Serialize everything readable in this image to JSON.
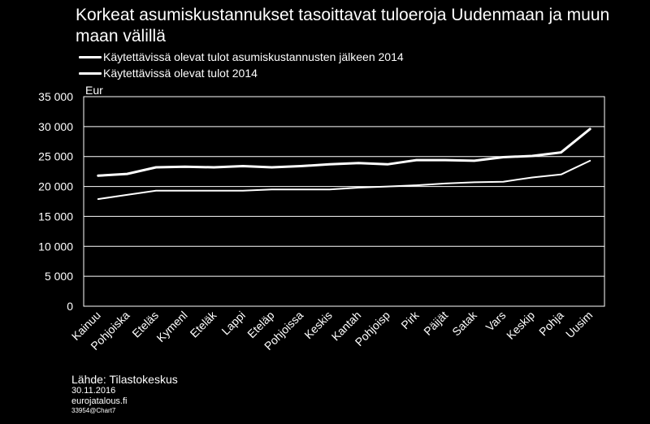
{
  "chart_data": {
    "type": "line",
    "title": "Korkeat asumiskustannukset tasoittavat tuloeroja Uudenmaan ja muun maan välillä",
    "ylabel": "Eur",
    "xlabel": "",
    "ylim": [
      0,
      35000
    ],
    "yticks": [
      0,
      5000,
      10000,
      15000,
      20000,
      25000,
      30000,
      35000
    ],
    "ytick_labels": [
      "0",
      "5 000",
      "10 000",
      "15 000",
      "20 000",
      "25 000",
      "30 000",
      "35 000"
    ],
    "grid": true,
    "legend_position": "top-left",
    "categories": [
      "Kainuu",
      "Pohjoiska",
      "Eteläs",
      "Kymenl",
      "Eteläk",
      "Lappi",
      "Eteläp",
      "Pohjoissa",
      "Keskis",
      "Kantah",
      "Pohjoisp",
      "Pirk",
      "Päijät",
      "Satak",
      "Vars",
      "Keskip",
      "Pohja",
      "Uusim"
    ],
    "series": [
      {
        "name": "Käytettävissä olevat tulot asumiskustannusten jälkeen 2014",
        "values": [
          17900,
          18600,
          19300,
          19300,
          19300,
          19300,
          19500,
          19500,
          19500,
          19800,
          20000,
          20200,
          20500,
          20700,
          20800,
          21500,
          22000,
          24300
        ]
      },
      {
        "name": "Käytettävissä olevat tulot 2014",
        "values": [
          21800,
          22100,
          23200,
          23300,
          23200,
          23400,
          23200,
          23400,
          23700,
          23900,
          23700,
          24400,
          24400,
          24300,
          24900,
          25100,
          25700,
          29600
        ]
      }
    ]
  },
  "footer": {
    "source": "Lähde: Tilastokeskus",
    "date": "30.11.2016",
    "site": "eurojatalous.fi",
    "code": "33954@Chart7"
  },
  "colors": {
    "background": "#000000",
    "line": "#ffffff",
    "grid": "#ffffff"
  }
}
